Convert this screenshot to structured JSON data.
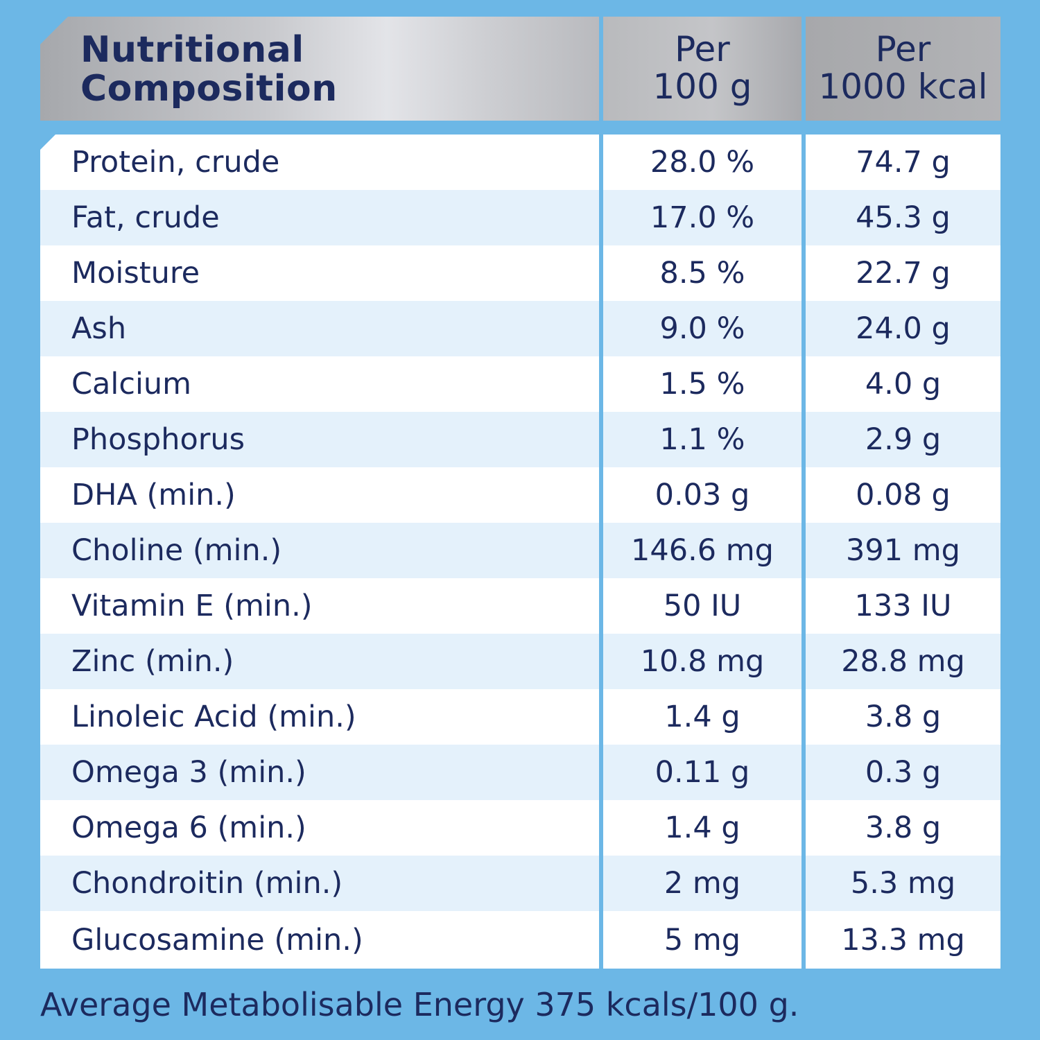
{
  "header": {
    "title_line1": "Nutritional",
    "title_line2": "Composition",
    "col1_line1": "Per",
    "col1_line2": "100 g",
    "col2_line1": "Per",
    "col2_line2": "1000 kcal"
  },
  "rows": [
    {
      "nutrient": "Protein, crude",
      "per_100g": "28.0 %",
      "per_1000kcal": "74.7 g"
    },
    {
      "nutrient": "Fat, crude",
      "per_100g": "17.0 %",
      "per_1000kcal": "45.3 g"
    },
    {
      "nutrient": "Moisture",
      "per_100g": "8.5 %",
      "per_1000kcal": "22.7 g"
    },
    {
      "nutrient": "Ash",
      "per_100g": "9.0 %",
      "per_1000kcal": "24.0 g"
    },
    {
      "nutrient": "Calcium",
      "per_100g": "1.5 %",
      "per_1000kcal": "4.0 g"
    },
    {
      "nutrient": "Phosphorus",
      "per_100g": "1.1 %",
      "per_1000kcal": "2.9 g"
    },
    {
      "nutrient": "DHA (min.)",
      "per_100g": "0.03 g",
      "per_1000kcal": "0.08 g"
    },
    {
      "nutrient": "Choline (min.)",
      "per_100g": "146.6 mg",
      "per_1000kcal": "391 mg"
    },
    {
      "nutrient": "Vitamin E (min.)",
      "per_100g": "50 IU",
      "per_1000kcal": "133 IU"
    },
    {
      "nutrient": "Zinc (min.)",
      "per_100g": "10.8 mg",
      "per_1000kcal": "28.8 mg"
    },
    {
      "nutrient": "Linoleic Acid (min.)",
      "per_100g": "1.4 g",
      "per_1000kcal": "3.8 g"
    },
    {
      "nutrient": "Omega 3 (min.)",
      "per_100g": "0.11 g",
      "per_1000kcal": "0.3 g"
    },
    {
      "nutrient": "Omega 6 (min.)",
      "per_100g": "1.4 g",
      "per_1000kcal": "3.8 g"
    },
    {
      "nutrient": "Chondroitin (min.)",
      "per_100g": "2 mg",
      "per_1000kcal": "5.3 mg"
    },
    {
      "nutrient": "Glucosamine (min.)",
      "per_100g": "5 mg",
      "per_1000kcal": "13.3 mg"
    }
  ],
  "footer": "Average Metabolisable Energy 375 kcals/100 g.",
  "colors": {
    "background": "#6cb7e6",
    "text": "#1c2a5e",
    "row_white": "#ffffff",
    "row_tint": "#e4f1fb"
  }
}
